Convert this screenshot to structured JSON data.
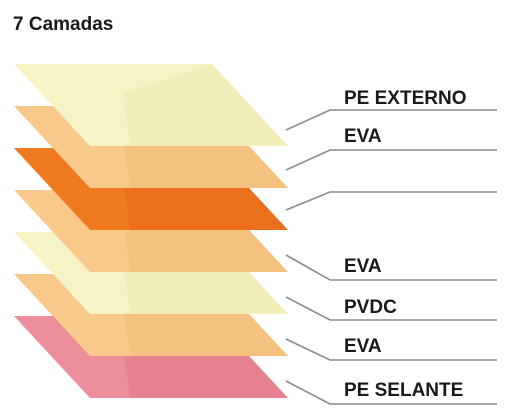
{
  "title": "7 Camadas",
  "layers": [
    {
      "label": "PE SELANTE",
      "color": "#ec8e9b",
      "shade": "#e27987"
    },
    {
      "label": "EVA",
      "color": "#f8c98a",
      "shade": "#f2b977"
    },
    {
      "label": "PVDC",
      "color": "#f6f4c6",
      "shade": "#eeeab0"
    },
    {
      "label": "EVA",
      "color": "#f8c98a",
      "shade": "#f2b977"
    },
    {
      "label": "",
      "color": "#f07a1f",
      "shade": "#e7671a"
    },
    {
      "label": "EVA",
      "color": "#f8c98a",
      "shade": "#f2b977"
    },
    {
      "label": "PE EXTERNO",
      "color": "#f6f4c6",
      "shade": "#eeeab0"
    }
  ],
  "leader_color": "#8a8a8a"
}
